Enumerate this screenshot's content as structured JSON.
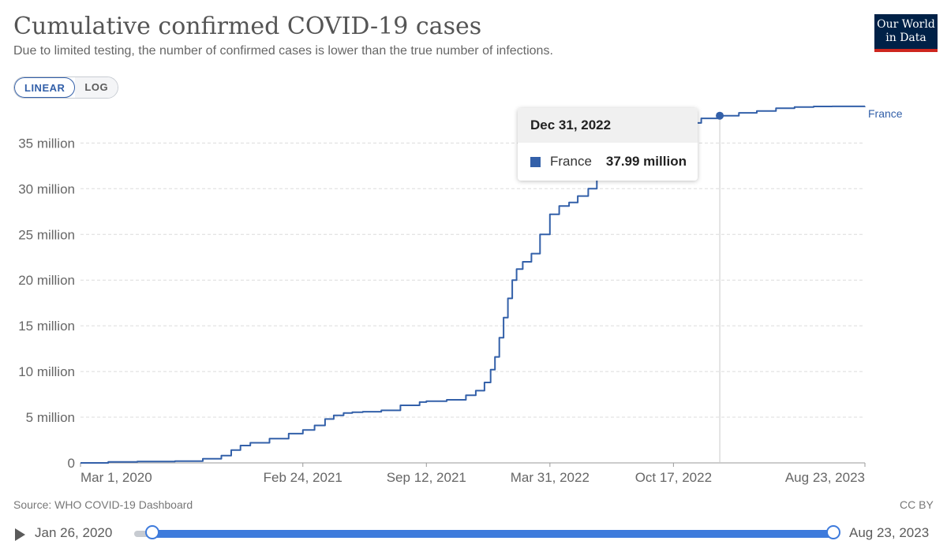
{
  "header": {
    "title": "Cumulative confirmed COVID-19 cases",
    "subtitle": "Due to limited testing, the number of confirmed cases is lower than the true number of infections.",
    "logo_line1": "Our World",
    "logo_line2": "in Data"
  },
  "scale_toggle": {
    "linear_label": "LINEAR",
    "log_label": "LOG",
    "active": "LINEAR"
  },
  "tooltip": {
    "date": "Dec 31, 2022",
    "series": "France",
    "value": "37.99 million"
  },
  "footer": {
    "source": "Source: WHO COVID-19 Dashboard",
    "license": "CC BY"
  },
  "timeline": {
    "start": "Jan 26, 2020",
    "end": "Aug 23, 2023"
  },
  "colors": {
    "series": "#3360a9",
    "slider": "#3e7bdc"
  },
  "chart_data": {
    "type": "line",
    "title": "Cumulative confirmed COVID-19 cases",
    "subtitle": "Due to limited testing, the number of confirmed cases is lower than the true number of infections.",
    "xlabel": "",
    "ylabel": "",
    "x_range": [
      "2020-03-01",
      "2023-08-23"
    ],
    "ylim": [
      0,
      39000000
    ],
    "y_ticks": [
      0,
      5000000,
      10000000,
      15000000,
      20000000,
      25000000,
      30000000,
      35000000
    ],
    "y_tick_labels": [
      "0",
      "5 million",
      "10 million",
      "15 million",
      "20 million",
      "25 million",
      "30 million",
      "35 million"
    ],
    "x_ticks": [
      "2020-03-01",
      "2021-02-24",
      "2021-09-12",
      "2022-03-31",
      "2022-10-17",
      "2023-08-23"
    ],
    "x_tick_labels": [
      "Mar 1, 2020",
      "Feb 24, 2021",
      "Sep 12, 2021",
      "Mar 31, 2022",
      "Oct 17, 2022",
      "Aug 23, 2023"
    ],
    "grid": true,
    "series": [
      {
        "name": "France",
        "highlight": {
          "x": "2022-12-31",
          "y": 37990000
        },
        "x": [
          "2020-03-01",
          "2020-04-15",
          "2020-06-01",
          "2020-08-01",
          "2020-09-15",
          "2020-10-15",
          "2020-10-31",
          "2020-11-15",
          "2020-12-01",
          "2021-01-01",
          "2021-02-01",
          "2021-02-24",
          "2021-03-15",
          "2021-04-01",
          "2021-04-15",
          "2021-05-01",
          "2021-05-15",
          "2021-06-01",
          "2021-07-01",
          "2021-08-01",
          "2021-09-01",
          "2021-09-12",
          "2021-10-15",
          "2021-11-15",
          "2021-12-01",
          "2021-12-15",
          "2021-12-25",
          "2022-01-01",
          "2022-01-08",
          "2022-01-15",
          "2022-01-22",
          "2022-01-29",
          "2022-02-05",
          "2022-02-15",
          "2022-03-01",
          "2022-03-15",
          "2022-03-31",
          "2022-04-15",
          "2022-05-01",
          "2022-05-15",
          "2022-06-01",
          "2022-06-15",
          "2022-07-01",
          "2022-07-15",
          "2022-08-01",
          "2022-09-01",
          "2022-09-15",
          "2022-10-01",
          "2022-10-17",
          "2022-11-01",
          "2022-12-01",
          "2022-12-31",
          "2023-01-31",
          "2023-03-01",
          "2023-04-01",
          "2023-05-01",
          "2023-06-01",
          "2023-07-01",
          "2023-08-23"
        ],
        "values": [
          100,
          100000,
          150000,
          200000,
          450000,
          800000,
          1400000,
          1900000,
          2200000,
          2650000,
          3200000,
          3600000,
          4100000,
          4800000,
          5200000,
          5450000,
          5550000,
          5600000,
          5750000,
          6300000,
          6650000,
          6750000,
          6900000,
          7400000,
          7900000,
          8800000,
          10200000,
          11600000,
          13700000,
          15900000,
          18000000,
          20000000,
          21200000,
          22000000,
          22900000,
          25000000,
          27200000,
          28100000,
          28500000,
          29200000,
          30000000,
          31300000,
          32400000,
          33600000,
          34500000,
          35000000,
          35200000,
          36000000,
          36700000,
          37200000,
          37700000,
          37990000,
          38300000,
          38500000,
          38800000,
          38930000,
          39000000,
          39010000,
          39020000
        ]
      }
    ]
  }
}
